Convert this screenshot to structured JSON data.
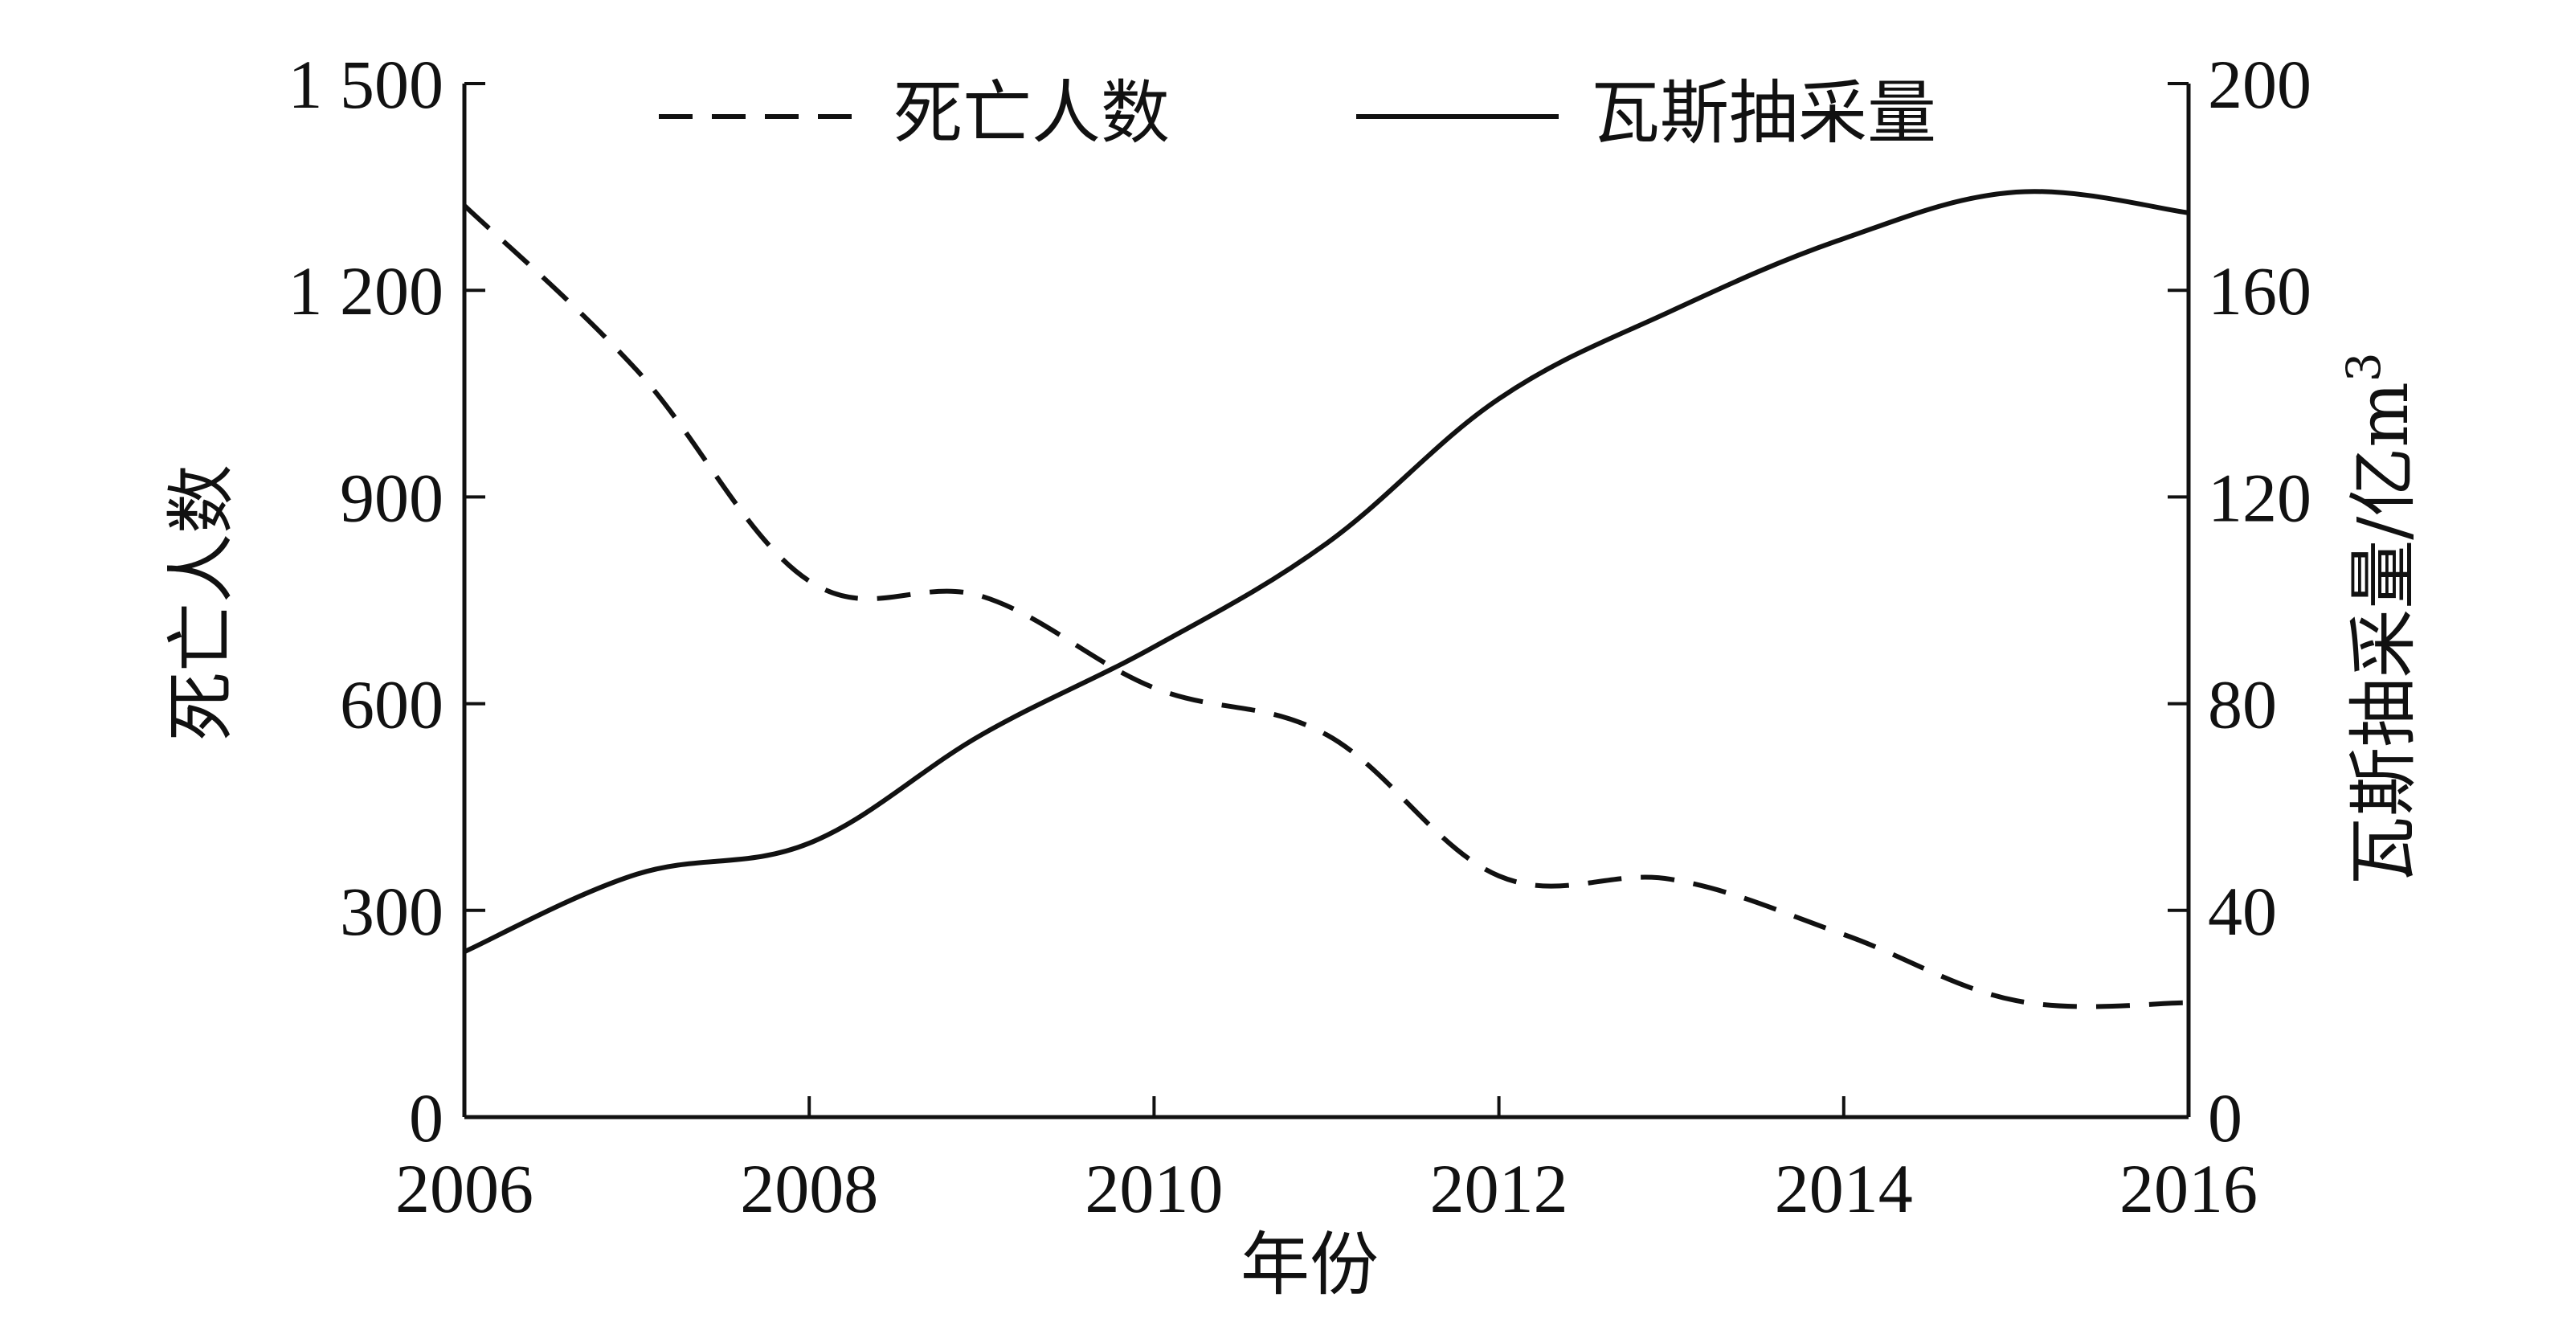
{
  "chart_data": {
    "type": "line",
    "title": "",
    "xlabel": "年份",
    "ylabel_left": "死亡人数",
    "ylabel_right": "瓦斯抽采量/亿m",
    "ylabel_right_superscript": "3",
    "xlim": [
      2006,
      2016
    ],
    "ylim_left": [
      0,
      1500
    ],
    "ylim_right": [
      0,
      200
    ],
    "x_ticks": [
      "2006",
      "2008",
      "2010",
      "2012",
      "2014",
      "2016"
    ],
    "y_left_ticks": [
      "0",
      "300",
      "600",
      "900",
      "1 200",
      "1 500"
    ],
    "y_right_ticks": [
      "0",
      "40",
      "80",
      "120",
      "160",
      "200"
    ],
    "grid": false,
    "legend_position": "top",
    "series": [
      {
        "name": "死亡人数",
        "axis": "left",
        "line_style": "dashed",
        "color": "#111111",
        "x": [
          2006,
          2007,
          2008,
          2009,
          2010,
          2011,
          2012,
          2013,
          2014,
          2015,
          2016
        ],
        "values": [
          1323,
          1084,
          778,
          756,
          623,
          555,
          350,
          345,
          265,
          169,
          166
        ]
      },
      {
        "name": "瓦斯抽采量",
        "axis": "right",
        "line_style": "solid",
        "color": "#111111",
        "x": [
          2006,
          2007,
          2008,
          2009,
          2010,
          2011,
          2012,
          2013,
          2014,
          2015,
          2016
        ],
        "values": [
          32,
          47,
          53,
          74,
          91,
          111,
          139,
          156,
          170,
          179,
          175
        ]
      }
    ]
  }
}
